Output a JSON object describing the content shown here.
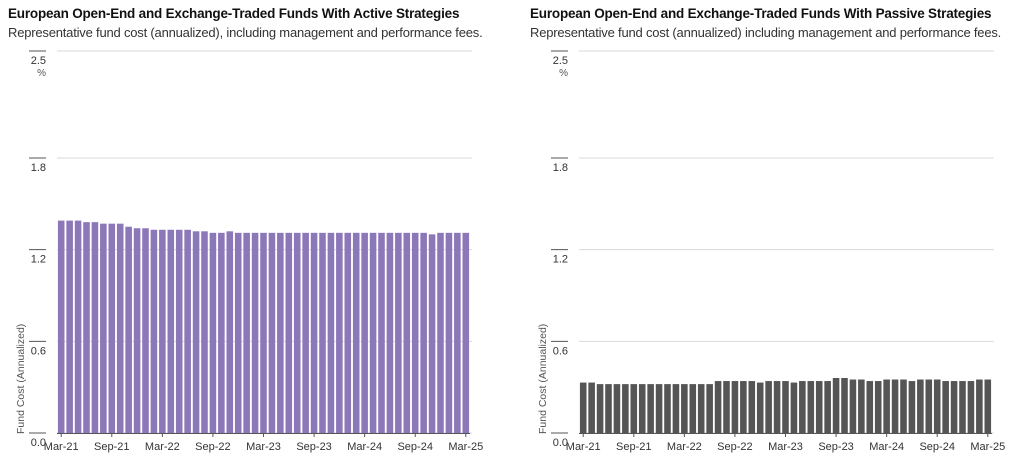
{
  "chart_data": [
    {
      "type": "bar",
      "title": "European Open-End and Exchange-Traded Funds With Active Strategies",
      "subtitle": "Representative fund cost (annualized), including management and performance fees.",
      "ylabel": "Fund Cost (Annualized)",
      "yunit": "%",
      "ylim": [
        0,
        2.5
      ],
      "yticks": [
        "0.0",
        "0.6",
        "1.2",
        "1.8",
        "2.5"
      ],
      "xticks": [
        "Mar-21",
        "Sep-21",
        "Mar-22",
        "Sep-22",
        "Mar-23",
        "Sep-23",
        "Mar-24",
        "Sep-24",
        "Mar-25"
      ],
      "grid": true,
      "color": "#8c78b8",
      "categories": [
        "Mar-21",
        "Apr-21",
        "May-21",
        "Jun-21",
        "Jul-21",
        "Aug-21",
        "Sep-21",
        "Oct-21",
        "Nov-21",
        "Dec-21",
        "Jan-22",
        "Feb-22",
        "Mar-22",
        "Apr-22",
        "May-22",
        "Jun-22",
        "Jul-22",
        "Aug-22",
        "Sep-22",
        "Oct-22",
        "Nov-22",
        "Dec-22",
        "Jan-23",
        "Feb-23",
        "Mar-23",
        "Apr-23",
        "May-23",
        "Jun-23",
        "Jul-23",
        "Aug-23",
        "Sep-23",
        "Oct-23",
        "Nov-23",
        "Dec-23",
        "Jan-24",
        "Feb-24",
        "Mar-24",
        "Apr-24",
        "May-24",
        "Jun-24",
        "Jul-24",
        "Aug-24",
        "Sep-24",
        "Oct-24",
        "Nov-24",
        "Dec-24",
        "Jan-25",
        "Feb-25",
        "Mar-25"
      ],
      "values": [
        1.39,
        1.39,
        1.39,
        1.38,
        1.38,
        1.37,
        1.37,
        1.37,
        1.35,
        1.34,
        1.34,
        1.33,
        1.33,
        1.33,
        1.33,
        1.33,
        1.32,
        1.32,
        1.31,
        1.31,
        1.32,
        1.31,
        1.31,
        1.31,
        1.31,
        1.31,
        1.31,
        1.31,
        1.31,
        1.31,
        1.31,
        1.31,
        1.31,
        1.31,
        1.31,
        1.31,
        1.31,
        1.31,
        1.31,
        1.31,
        1.31,
        1.31,
        1.31,
        1.31,
        1.3,
        1.31,
        1.31,
        1.31,
        1.31
      ]
    },
    {
      "type": "bar",
      "title": "European Open-End and Exchange-Traded Funds With Passive Strategies",
      "subtitle": "Representative fund cost (annualized) including management and performance fees.",
      "ylabel": "Fund Cost (Annualized)",
      "yunit": "%",
      "ylim": [
        0,
        2.5
      ],
      "yticks": [
        "0.0",
        "0.6",
        "1.2",
        "1.8",
        "2.5"
      ],
      "xticks": [
        "Mar-21",
        "Sep-21",
        "Mar-22",
        "Sep-22",
        "Mar-23",
        "Sep-23",
        "Mar-24",
        "Sep-24",
        "Mar-25"
      ],
      "grid": true,
      "color": "#555555",
      "categories": [
        "Mar-21",
        "Apr-21",
        "May-21",
        "Jun-21",
        "Jul-21",
        "Aug-21",
        "Sep-21",
        "Oct-21",
        "Nov-21",
        "Dec-21",
        "Jan-22",
        "Feb-22",
        "Mar-22",
        "Apr-22",
        "May-22",
        "Jun-22",
        "Jul-22",
        "Aug-22",
        "Sep-22",
        "Oct-22",
        "Nov-22",
        "Dec-22",
        "Jan-23",
        "Feb-23",
        "Mar-23",
        "Apr-23",
        "May-23",
        "Jun-23",
        "Jul-23",
        "Aug-23",
        "Sep-23",
        "Oct-23",
        "Nov-23",
        "Dec-23",
        "Jan-24",
        "Feb-24",
        "Mar-24",
        "Apr-24",
        "May-24",
        "Jun-24",
        "Jul-24",
        "Aug-24",
        "Sep-24",
        "Oct-24",
        "Nov-24",
        "Dec-24",
        "Jan-25",
        "Feb-25",
        "Mar-25"
      ],
      "values": [
        0.33,
        0.33,
        0.32,
        0.32,
        0.32,
        0.32,
        0.32,
        0.32,
        0.32,
        0.32,
        0.32,
        0.32,
        0.32,
        0.32,
        0.32,
        0.32,
        0.34,
        0.34,
        0.34,
        0.34,
        0.34,
        0.33,
        0.34,
        0.34,
        0.34,
        0.33,
        0.34,
        0.34,
        0.34,
        0.34,
        0.36,
        0.36,
        0.35,
        0.35,
        0.34,
        0.34,
        0.35,
        0.35,
        0.35,
        0.34,
        0.35,
        0.35,
        0.35,
        0.34,
        0.34,
        0.34,
        0.34,
        0.35,
        0.35
      ]
    }
  ]
}
